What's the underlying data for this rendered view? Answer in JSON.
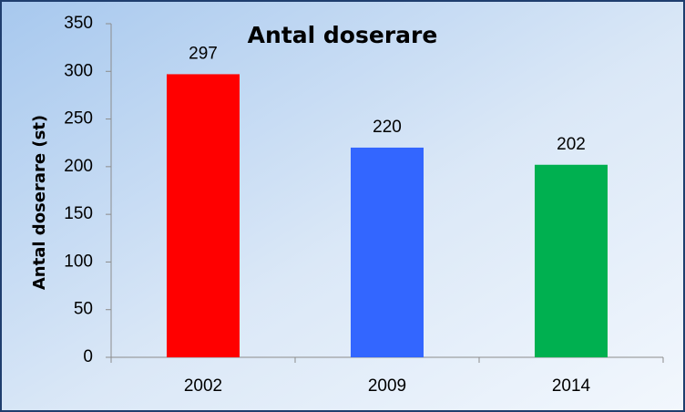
{
  "chart_data": {
    "type": "bar",
    "title": "Antal doserare",
    "y_label": "Antal doserare (st)",
    "categories": [
      "2002",
      "2009",
      "2014"
    ],
    "values": [
      297,
      220,
      202
    ],
    "colors": [
      "#ff0000",
      "#3366ff",
      "#00b050"
    ],
    "ylim": [
      0,
      350
    ],
    "yticks": [
      0,
      50,
      100,
      150,
      200,
      250,
      300,
      350
    ],
    "grid": false
  }
}
